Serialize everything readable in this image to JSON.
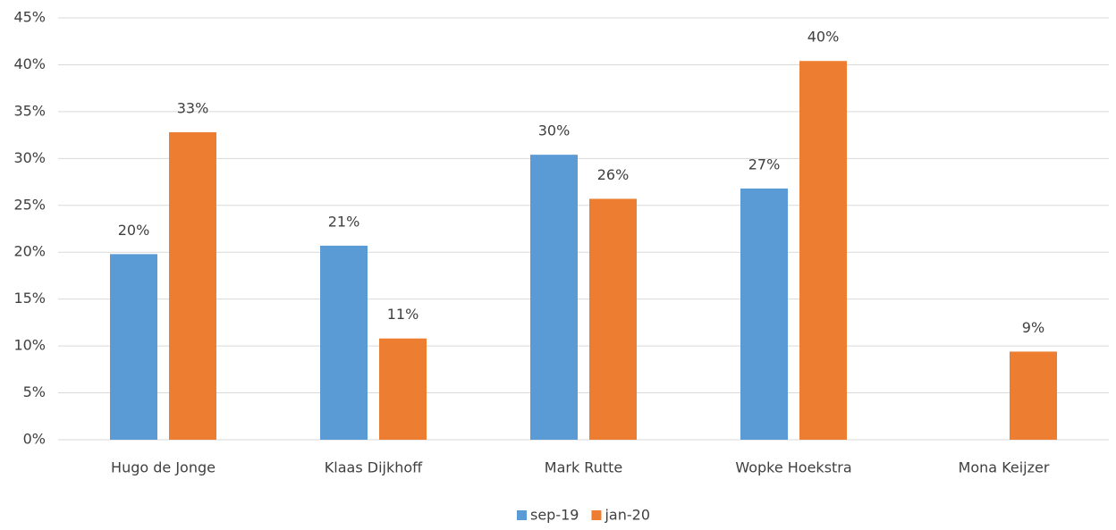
{
  "chart_data": {
    "type": "bar",
    "categories": [
      "Hugo de Jonge",
      "Klaas Dijkhoff",
      "Mark Rutte",
      "Wopke Hoekstra",
      "Mona Keijzer"
    ],
    "series": [
      {
        "name": "sep-19",
        "color": "#5b9bd5",
        "values": [
          19.8,
          20.7,
          30.4,
          26.8,
          null
        ],
        "value_labels": [
          "20%",
          "21%",
          "30%",
          "27%",
          null
        ]
      },
      {
        "name": "jan-20",
        "color": "#ed7d31",
        "values": [
          32.8,
          10.8,
          25.7,
          40.4,
          9.4
        ],
        "value_labels": [
          "33%",
          "11%",
          "26%",
          "40%",
          "9%"
        ]
      }
    ],
    "ylim": [
      0,
      45
    ],
    "yticks": [
      {
        "value": 0,
        "label": "0%"
      },
      {
        "value": 5,
        "label": "5%"
      },
      {
        "value": 10,
        "label": "10%"
      },
      {
        "value": 15,
        "label": "15%"
      },
      {
        "value": 20,
        "label": "20%"
      },
      {
        "value": 25,
        "label": "25%"
      },
      {
        "value": 30,
        "label": "30%"
      },
      {
        "value": 35,
        "label": "35%"
      },
      {
        "value": 40,
        "label": "40%"
      },
      {
        "value": 45,
        "label": "45%"
      }
    ],
    "grid": true,
    "legend": "bottom"
  }
}
